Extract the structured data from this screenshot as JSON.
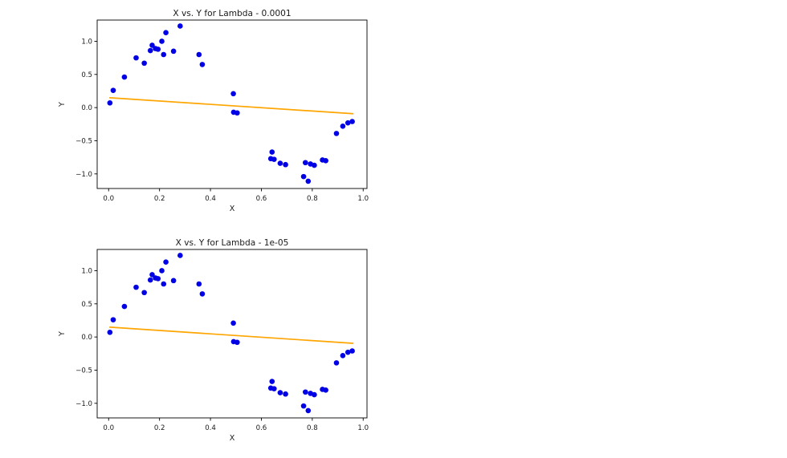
{
  "page": {
    "background_color": "#ffffff",
    "description": "Two stacked matplotlib scatter plots with linear fit lines"
  },
  "chart_data": [
    {
      "type": "scatter",
      "title": "X vs. Y for Lambda - 0.0001",
      "xlabel": "X",
      "ylabel": "Y",
      "xlim": [
        -0.045,
        1.015
      ],
      "ylim": [
        -1.22,
        1.32
      ],
      "x_ticks": [
        0.0,
        0.2,
        0.4,
        0.6,
        0.8,
        1.0
      ],
      "x_tick_labels": [
        "0.0",
        "0.2",
        "0.4",
        "0.6",
        "0.8",
        "1.0"
      ],
      "y_ticks": [
        1.0,
        0.5,
        0.0,
        -0.5,
        -1.0
      ],
      "y_tick_labels": [
        "1.0",
        "0.5",
        "0.0",
        "−0.5",
        "−1.0"
      ],
      "grid": false,
      "legend": null,
      "point_color": "#0000e6",
      "line_color": "#ffa500",
      "axis_color": "#000000",
      "text_color": "#1a1a1a",
      "points": [
        [
          0.005,
          0.07
        ],
        [
          0.018,
          0.26
        ],
        [
          0.062,
          0.46
        ],
        [
          0.108,
          0.75
        ],
        [
          0.14,
          0.67
        ],
        [
          0.164,
          0.86
        ],
        [
          0.171,
          0.94
        ],
        [
          0.184,
          0.89
        ],
        [
          0.194,
          0.88
        ],
        [
          0.209,
          1.0
        ],
        [
          0.216,
          0.8
        ],
        [
          0.225,
          1.13
        ],
        [
          0.255,
          0.85
        ],
        [
          0.281,
          1.23
        ],
        [
          0.355,
          0.8
        ],
        [
          0.368,
          0.65
        ],
        [
          0.49,
          0.21
        ],
        [
          0.491,
          -0.07
        ],
        [
          0.505,
          -0.08
        ],
        [
          0.642,
          -0.67
        ],
        [
          0.637,
          -0.77
        ],
        [
          0.65,
          -0.78
        ],
        [
          0.674,
          -0.84
        ],
        [
          0.695,
          -0.86
        ],
        [
          0.773,
          -0.83
        ],
        [
          0.793,
          -0.85
        ],
        [
          0.808,
          -0.87
        ],
        [
          0.766,
          -1.04
        ],
        [
          0.784,
          -1.11
        ],
        [
          0.84,
          -0.79
        ],
        [
          0.853,
          -0.8
        ],
        [
          0.895,
          -0.39
        ],
        [
          0.92,
          -0.28
        ],
        [
          0.94,
          -0.23
        ],
        [
          0.957,
          -0.21
        ]
      ],
      "fit_line": {
        "x": [
          0.005,
          0.96
        ],
        "y": [
          0.148,
          -0.092
        ]
      }
    },
    {
      "type": "scatter",
      "title": "X vs. Y for Lambda - 1e-05",
      "xlabel": "X",
      "ylabel": "Y",
      "xlim": [
        -0.045,
        1.015
      ],
      "ylim": [
        -1.22,
        1.32
      ],
      "x_ticks": [
        0.0,
        0.2,
        0.4,
        0.6,
        0.8,
        1.0
      ],
      "x_tick_labels": [
        "0.0",
        "0.2",
        "0.4",
        "0.6",
        "0.8",
        "1.0"
      ],
      "y_ticks": [
        1.0,
        0.5,
        0.0,
        -0.5,
        -1.0
      ],
      "y_tick_labels": [
        "1.0",
        "0.5",
        "0.0",
        "−0.5",
        "−1.0"
      ],
      "grid": false,
      "legend": null,
      "point_color": "#0000e6",
      "line_color": "#ffa500",
      "axis_color": "#000000",
      "text_color": "#1a1a1a",
      "points": [
        [
          0.005,
          0.07
        ],
        [
          0.018,
          0.26
        ],
        [
          0.062,
          0.46
        ],
        [
          0.108,
          0.75
        ],
        [
          0.14,
          0.67
        ],
        [
          0.164,
          0.86
        ],
        [
          0.171,
          0.94
        ],
        [
          0.184,
          0.89
        ],
        [
          0.194,
          0.88
        ],
        [
          0.209,
          1.0
        ],
        [
          0.216,
          0.8
        ],
        [
          0.225,
          1.13
        ],
        [
          0.255,
          0.85
        ],
        [
          0.281,
          1.23
        ],
        [
          0.355,
          0.8
        ],
        [
          0.368,
          0.65
        ],
        [
          0.49,
          0.21
        ],
        [
          0.491,
          -0.07
        ],
        [
          0.505,
          -0.08
        ],
        [
          0.642,
          -0.67
        ],
        [
          0.637,
          -0.77
        ],
        [
          0.65,
          -0.78
        ],
        [
          0.674,
          -0.84
        ],
        [
          0.695,
          -0.86
        ],
        [
          0.773,
          -0.83
        ],
        [
          0.793,
          -0.85
        ],
        [
          0.808,
          -0.87
        ],
        [
          0.766,
          -1.04
        ],
        [
          0.784,
          -1.11
        ],
        [
          0.84,
          -0.79
        ],
        [
          0.853,
          -0.8
        ],
        [
          0.895,
          -0.39
        ],
        [
          0.92,
          -0.28
        ],
        [
          0.94,
          -0.23
        ],
        [
          0.957,
          -0.21
        ]
      ],
      "fit_line": {
        "x": [
          0.005,
          0.96
        ],
        "y": [
          0.148,
          -0.095
        ]
      }
    }
  ]
}
